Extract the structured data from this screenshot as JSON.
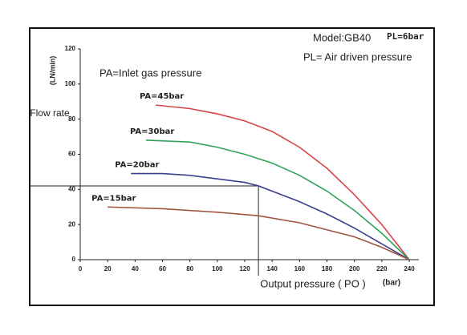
{
  "chart_data": {
    "type": "line",
    "title": "Model:GB40",
    "title_badge": "PL=6bar",
    "subtitle": "PL= Air driven pressure",
    "annotation": "PA=Inlet gas pressure",
    "ylabel": "Flow rate",
    "yunit": "(LN/min)",
    "xlabel": "Output pressure ( PO )",
    "xunit": "(bar)",
    "xlim": [
      0,
      240
    ],
    "xticks": [
      0,
      20,
      40,
      60,
      80,
      100,
      120,
      140,
      160,
      180,
      200,
      220,
      240
    ],
    "ylim": [
      0,
      120
    ],
    "yticks": [
      0,
      20,
      40,
      60,
      80,
      100,
      120
    ],
    "reference": {
      "x": 130,
      "y": 42
    },
    "series": [
      {
        "name": "PA=45bar",
        "color": "#d9434a",
        "x": [
          55,
          80,
          100,
          120,
          140,
          160,
          180,
          200,
          220,
          240
        ],
        "values": [
          88,
          86,
          83,
          79,
          73,
          64,
          52,
          37,
          20,
          0
        ]
      },
      {
        "name": "PA=30bar",
        "color": "#2fa35a",
        "x": [
          48,
          80,
          100,
          120,
          140,
          160,
          180,
          200,
          220,
          240
        ],
        "values": [
          68,
          67,
          64,
          60,
          55,
          48,
          39,
          28,
          15,
          0
        ]
      },
      {
        "name": "PA=20bar",
        "color": "#3a3f8f",
        "x": [
          37,
          60,
          80,
          100,
          120,
          130,
          140,
          160,
          180,
          200,
          220,
          240
        ],
        "values": [
          49,
          49,
          48,
          46,
          44,
          42,
          39,
          33,
          26,
          18,
          9,
          0
        ]
      },
      {
        "name": "PA=15bar",
        "color": "#a0553f",
        "x": [
          20,
          60,
          100,
          130,
          160,
          200,
          220,
          240
        ],
        "values": [
          30,
          29,
          27,
          25,
          21,
          13,
          7,
          0
        ]
      }
    ]
  }
}
